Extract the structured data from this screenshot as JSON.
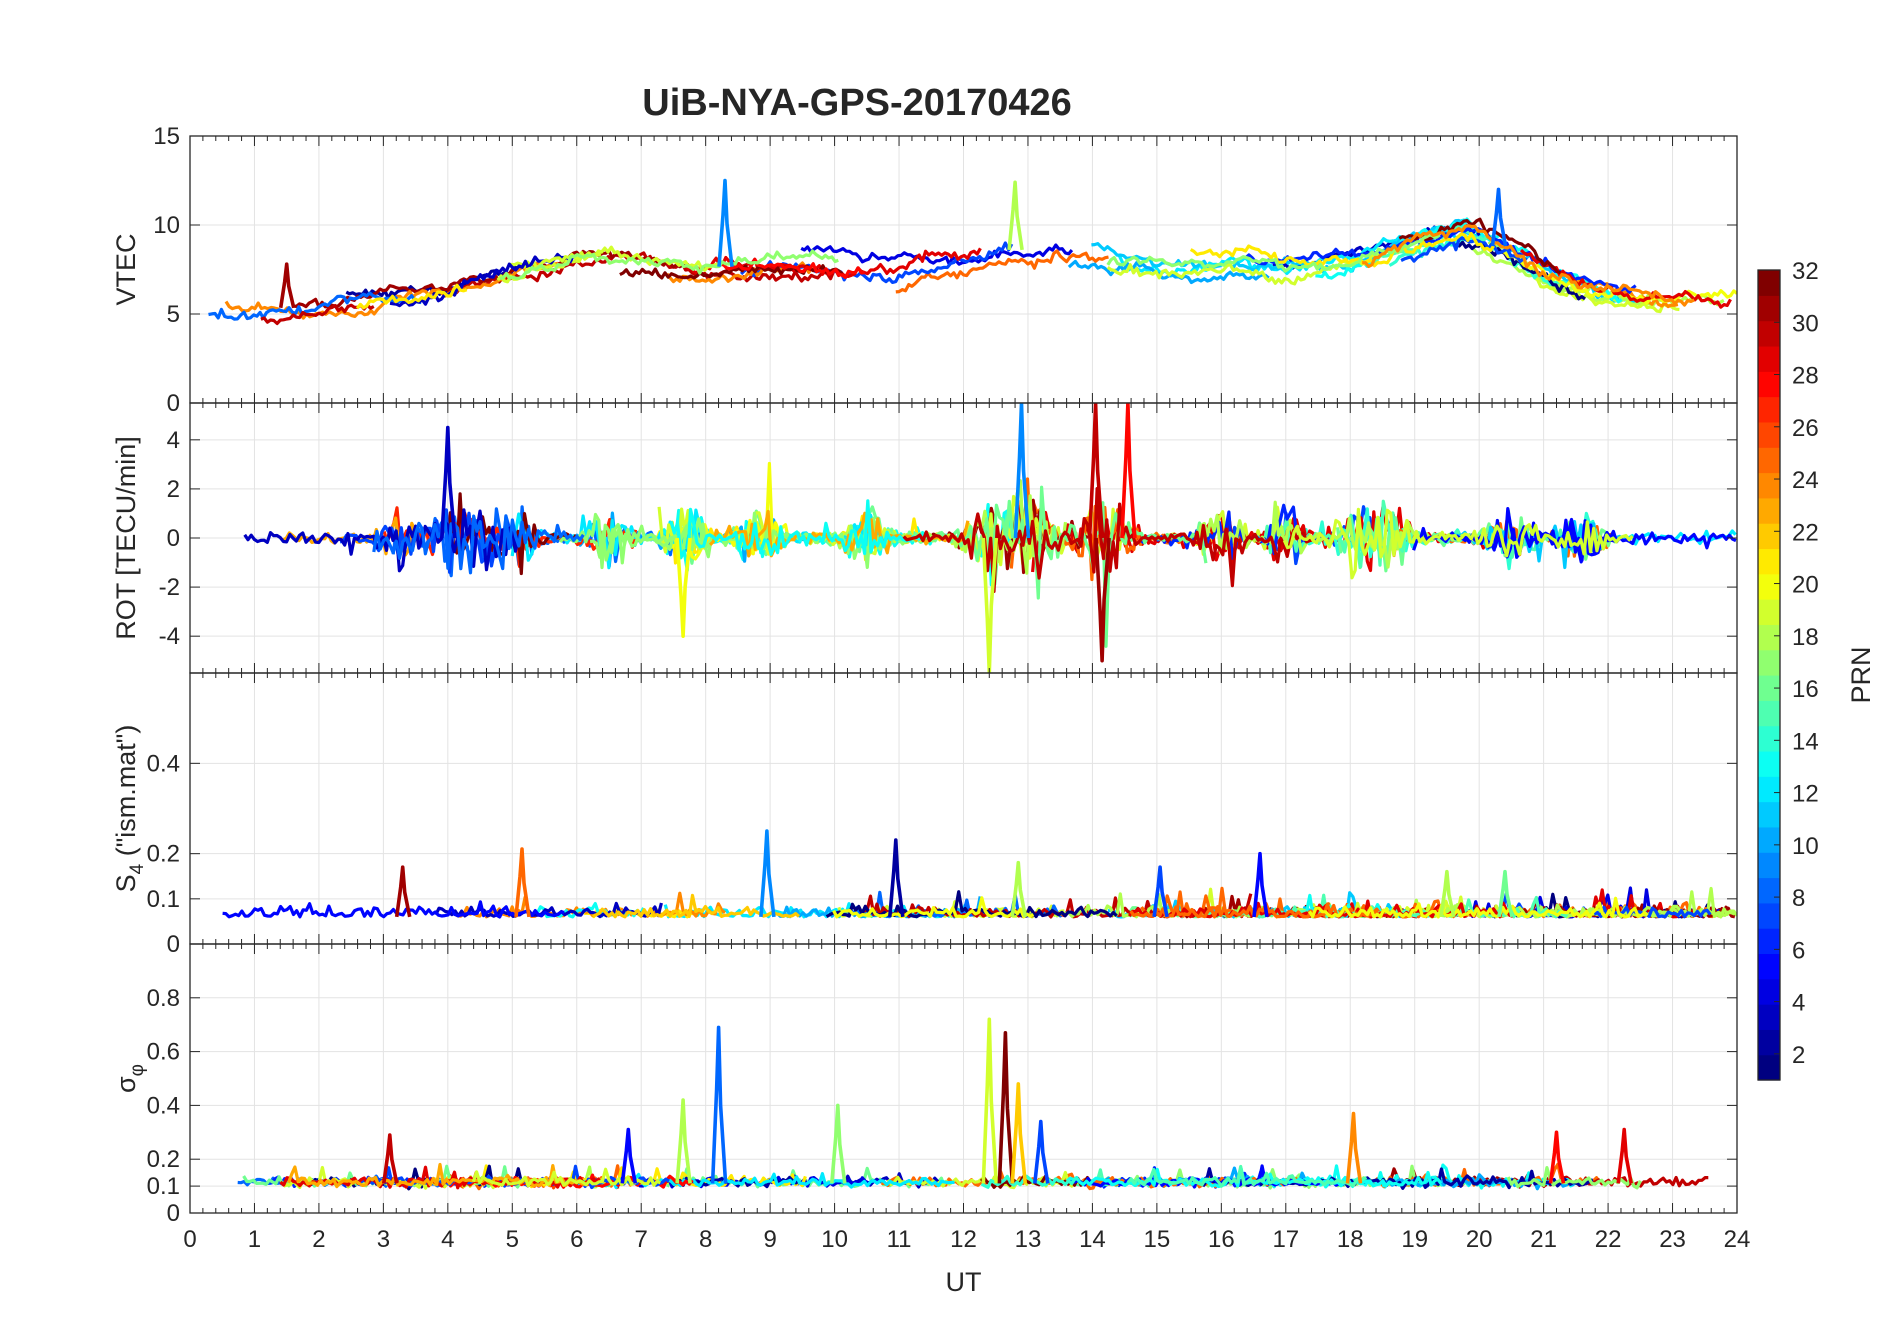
{
  "chart_data": {
    "type": "line",
    "title": "UiB-NYA-GPS-20170426",
    "xlabel": "UT",
    "x_ticks": [
      "0",
      "1",
      "2",
      "3",
      "4",
      "5",
      "6",
      "7",
      "8",
      "9",
      "10",
      "11",
      "12",
      "13",
      "14",
      "15",
      "16",
      "17",
      "18",
      "19",
      "20",
      "21",
      "22",
      "23",
      "24"
    ],
    "xlim": [
      0,
      24
    ],
    "series_description": "Color-coded GPS satellite traces (PRN 1-32)",
    "panels": [
      {
        "name": "vtec",
        "ylabel": "VTEC",
        "ylim": [
          0,
          15
        ],
        "y_ticks": [
          "15",
          "10",
          "5",
          "0"
        ],
        "y_tick_values": [
          15,
          10,
          5,
          0
        ],
        "envelope": {
          "hours": [
            0,
            1,
            2,
            3,
            4,
            5,
            6,
            7,
            8,
            9,
            10,
            11,
            12,
            12.8,
            14,
            15,
            16,
            17,
            18,
            19,
            19.8,
            20.5,
            21,
            22,
            23,
            24
          ],
          "values": [
            5.3,
            5.2,
            5.5,
            5.8,
            6.2,
            7.0,
            7.8,
            7.8,
            7.6,
            7.8,
            7.5,
            7.6,
            8.2,
            8.6,
            8.4,
            7.6,
            7.3,
            7.1,
            7.5,
            8.7,
            9.6,
            8.5,
            7.3,
            6.0,
            5.6,
            5.7
          ]
        },
        "highlights": [
          {
            "x": 8.3,
            "y": 12.5,
            "prn": 9
          },
          {
            "x": 12.8,
            "y": 12.4,
            "prn": 18
          },
          {
            "x": 20.3,
            "y": 12.0,
            "prn": 8
          },
          {
            "x": 1.5,
            "y": 7.8,
            "prn": 31
          }
        ]
      },
      {
        "name": "rot",
        "ylabel": "ROT [TECU/min]",
        "ylim": [
          -5.5,
          5.5
        ],
        "y_ticks": [
          "4",
          "2",
          "0",
          "-2",
          "-4"
        ],
        "y_tick_values": [
          4,
          2,
          0,
          -2,
          -4
        ],
        "activity_hours": [
          3.2,
          4.0,
          4.5,
          5.1,
          6.5,
          7.7,
          8.8,
          10.5,
          12.3,
          12.6,
          12.9,
          13.2,
          14.0,
          14.3,
          16.0,
          17.0,
          18.1,
          18.6,
          20.5,
          21.6
        ],
        "highlights": [
          {
            "x": 12.9,
            "y": 5.5,
            "prn": 9
          },
          {
            "x": 14.05,
            "y": 5.5,
            "prn": 30
          },
          {
            "x": 14.55,
            "y": 5.5,
            "prn": 28
          },
          {
            "x": 12.4,
            "y": -5.5,
            "prn": 19
          },
          {
            "x": 14.15,
            "y": -5.0,
            "prn": 31
          },
          {
            "x": 7.65,
            "y": -4.0,
            "prn": 20
          },
          {
            "x": 4.0,
            "y": 4.5,
            "prn": 3
          }
        ]
      },
      {
        "name": "s4",
        "ylabel": "S4 (\"ism.mat\")",
        "ylabel_main": "S",
        "ylabel_sub": "4",
        "ylabel_rest": " (\"ism.mat\")",
        "ylim": [
          0,
          0.6
        ],
        "y_ticks": [
          "0.4",
          "0.2",
          "0.1",
          "0"
        ],
        "y_tick_values": [
          0.4,
          0.2,
          0.1,
          0
        ],
        "highlights": [
          {
            "x": 8.95,
            "y": 0.25,
            "prn": 9
          },
          {
            "x": 10.95,
            "y": 0.23,
            "prn": 2
          },
          {
            "x": 5.15,
            "y": 0.21,
            "prn": 25
          },
          {
            "x": 16.6,
            "y": 0.2,
            "prn": 5
          },
          {
            "x": 3.3,
            "y": 0.17,
            "prn": 31
          },
          {
            "x": 12.85,
            "y": 0.18,
            "prn": 18
          },
          {
            "x": 15.05,
            "y": 0.17,
            "prn": 7
          },
          {
            "x": 20.4,
            "y": 0.16,
            "prn": 16
          },
          {
            "x": 19.5,
            "y": 0.16,
            "prn": 18
          }
        ]
      },
      {
        "name": "sigma-phi",
        "ylabel": "σφ",
        "ylabel_main": "σ",
        "ylabel_sub": "φ",
        "ylim": [
          0,
          1
        ],
        "y_ticks": [
          "0.8",
          "0.6",
          "0.4",
          "0.2",
          "0.1",
          "0"
        ],
        "y_tick_values": [
          0.8,
          0.6,
          0.4,
          0.2,
          0.1,
          0
        ],
        "highlights": [
          {
            "x": 8.2,
            "y": 0.69,
            "prn": 8
          },
          {
            "x": 12.4,
            "y": 0.72,
            "prn": 19
          },
          {
            "x": 12.65,
            "y": 0.67,
            "prn": 32
          },
          {
            "x": 12.85,
            "y": 0.48,
            "prn": 22
          },
          {
            "x": 7.65,
            "y": 0.42,
            "prn": 18
          },
          {
            "x": 10.05,
            "y": 0.4,
            "prn": 17
          },
          {
            "x": 18.05,
            "y": 0.37,
            "prn": 24
          },
          {
            "x": 13.2,
            "y": 0.34,
            "prn": 7
          },
          {
            "x": 6.8,
            "y": 0.31,
            "prn": 5
          },
          {
            "x": 22.25,
            "y": 0.31,
            "prn": 29
          },
          {
            "x": 21.2,
            "y": 0.3,
            "prn": 28
          },
          {
            "x": 3.1,
            "y": 0.29,
            "prn": 30
          }
        ]
      }
    ],
    "colorbar": {
      "label": "PRN",
      "range": [
        1,
        32
      ],
      "colormap": "jet",
      "ticks": [
        "2",
        "4",
        "6",
        "8",
        "10",
        "12",
        "14",
        "16",
        "18",
        "20",
        "22",
        "24",
        "26",
        "28",
        "30",
        "32"
      ],
      "tick_values": [
        2,
        4,
        6,
        8,
        10,
        12,
        14,
        16,
        18,
        20,
        22,
        24,
        26,
        28,
        30,
        32
      ]
    }
  }
}
